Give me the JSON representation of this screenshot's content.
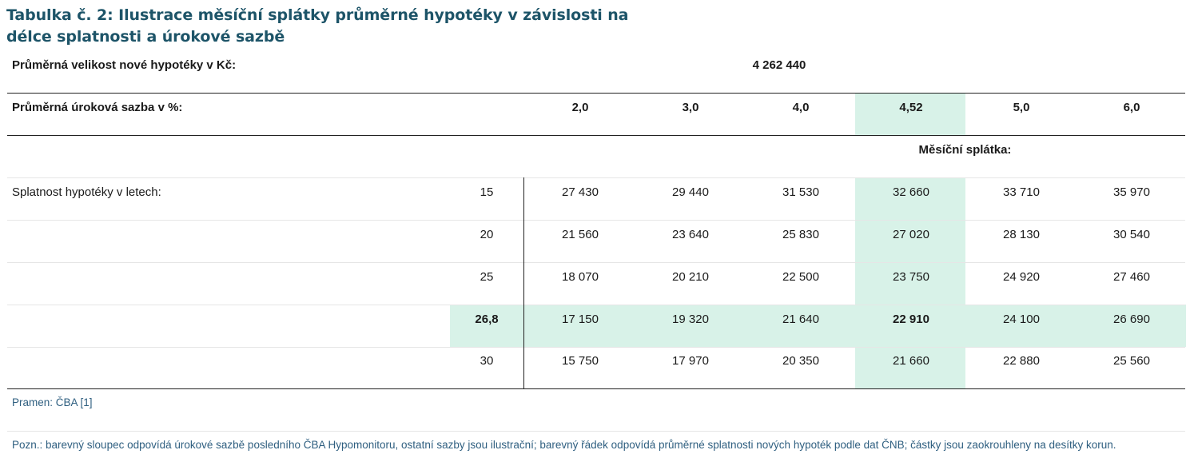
{
  "title": {
    "line1": "Tabulka č. 2: Ilustrace měsíční splátky průměrné hypotéky v závislosti na",
    "line2": "délce splatnosti a úrokové sazbě"
  },
  "avg_size": {
    "label": "Průměrná velikost nové hypotéky v Kč:",
    "value": "4 262 440"
  },
  "rate_row": {
    "label": "Průměrná úroková sazba v %:",
    "rates": [
      "2,0",
      "3,0",
      "4,0",
      "4,52",
      "5,0",
      "6,0"
    ]
  },
  "payment_header": "Měsíční splátka:",
  "maturity_label": "Splatnost hypotéky v letech:",
  "rows": [
    {
      "years": "15",
      "values": [
        "27 430",
        "29 440",
        "31 530",
        "32 660",
        "33 710",
        "35 970"
      ]
    },
    {
      "years": "20",
      "values": [
        "21 560",
        "23 640",
        "25 830",
        "27 020",
        "28 130",
        "30 540"
      ]
    },
    {
      "years": "25",
      "values": [
        "18 070",
        "20 210",
        "22 500",
        "23 750",
        "24 920",
        "27 460"
      ]
    },
    {
      "years": "26,8",
      "values": [
        "17 150",
        "19 320",
        "21 640",
        "22 910",
        "24 100",
        "26 690"
      ]
    },
    {
      "years": "30",
      "values": [
        "15 750",
        "17 970",
        "20 350",
        "21 660",
        "22 880",
        "25 560"
      ]
    }
  ],
  "highlight": {
    "column_index": 3,
    "row_index": 3,
    "color": "#d8f2e8"
  },
  "source": "Pramen: ČBA [1]",
  "note": "Pozn.: barevný sloupec odpovídá úrokové sazbě posledního ČBA Hypomonitoru, ostatní sazby jsou ilustrační; barevný řádek odpovídá průměrné splatnosti nových hypoték podle dat ČNB; částky jsou zaokrouhleny na desítky korun."
}
